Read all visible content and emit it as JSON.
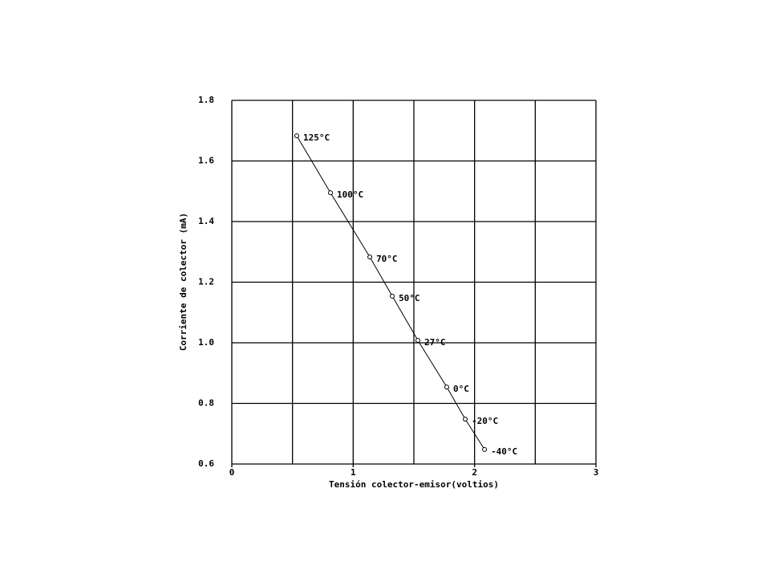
{
  "chart_data": {
    "type": "line",
    "x_label": "Tensión colector-emisor(voltios)",
    "y_label": "Corriente de colector (mA)",
    "x": [
      0.535,
      0.813,
      1.137,
      1.322,
      1.533,
      1.771,
      1.923,
      2.082
    ],
    "values": [
      1.683,
      1.495,
      1.283,
      1.154,
      1.008,
      0.854,
      0.748,
      0.648
    ],
    "point_labels": [
      "125°C",
      "100°C",
      "70°C",
      "50°C",
      "27°C",
      "0°C",
      "-20°C",
      "-40°C"
    ],
    "color": "#000000",
    "xlim": [
      0,
      3
    ],
    "xticks": [
      0,
      1,
      2,
      3
    ],
    "xgrid": [
      0.5,
      1,
      1.5,
      2,
      2.5,
      3
    ],
    "ylim": [
      0.6,
      1.8
    ],
    "yticks": [
      0.6,
      0.8,
      {
        "value": 1,
        "label": "1.0"
      },
      1.2,
      1.4,
      1.6,
      1.8
    ],
    "grid": true
  }
}
